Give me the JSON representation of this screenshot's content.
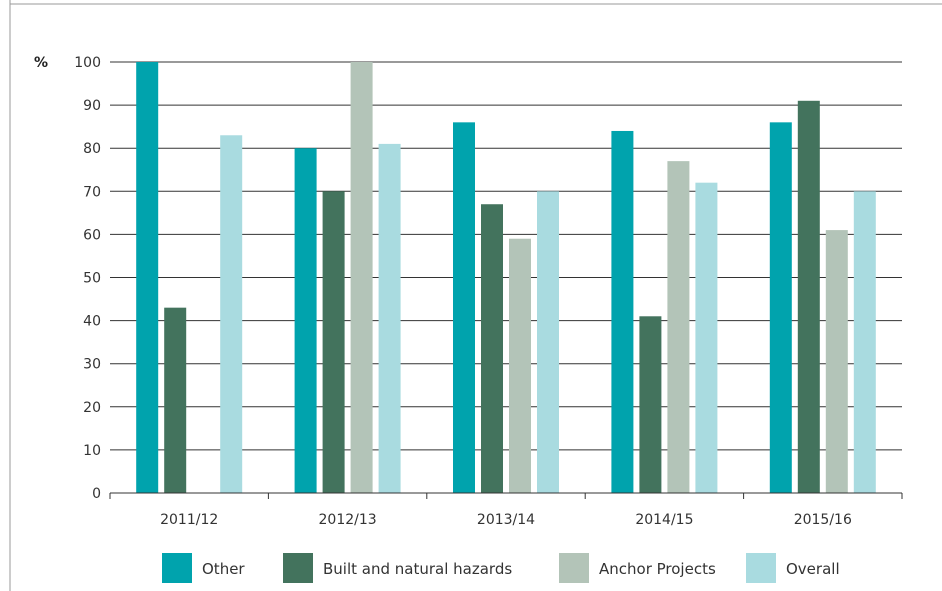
{
  "chart_data": {
    "type": "bar",
    "title": "",
    "xlabel": "",
    "ylabel": "%",
    "ylim": [
      0,
      100
    ],
    "yticks": [
      0,
      10,
      20,
      30,
      40,
      50,
      60,
      70,
      80,
      90,
      100
    ],
    "grid": true,
    "legend_position": "bottom",
    "categories": [
      "2011/12",
      "2012/13",
      "2013/14",
      "2014/15",
      "2015/16"
    ],
    "series": [
      {
        "name": "Other",
        "color": "#00a3ad",
        "values": [
          100,
          80,
          86,
          84,
          86
        ]
      },
      {
        "name": "Built and natural hazards",
        "color": "#43735d",
        "values": [
          43,
          70,
          67,
          41,
          91
        ]
      },
      {
        "name": "Anchor Projects",
        "color": "#b3c4b8",
        "values": [
          null,
          100,
          59,
          77,
          61
        ]
      },
      {
        "name": "Overall",
        "color": "#a9dbe0",
        "values": [
          83,
          81,
          70,
          72,
          70
        ]
      }
    ]
  }
}
